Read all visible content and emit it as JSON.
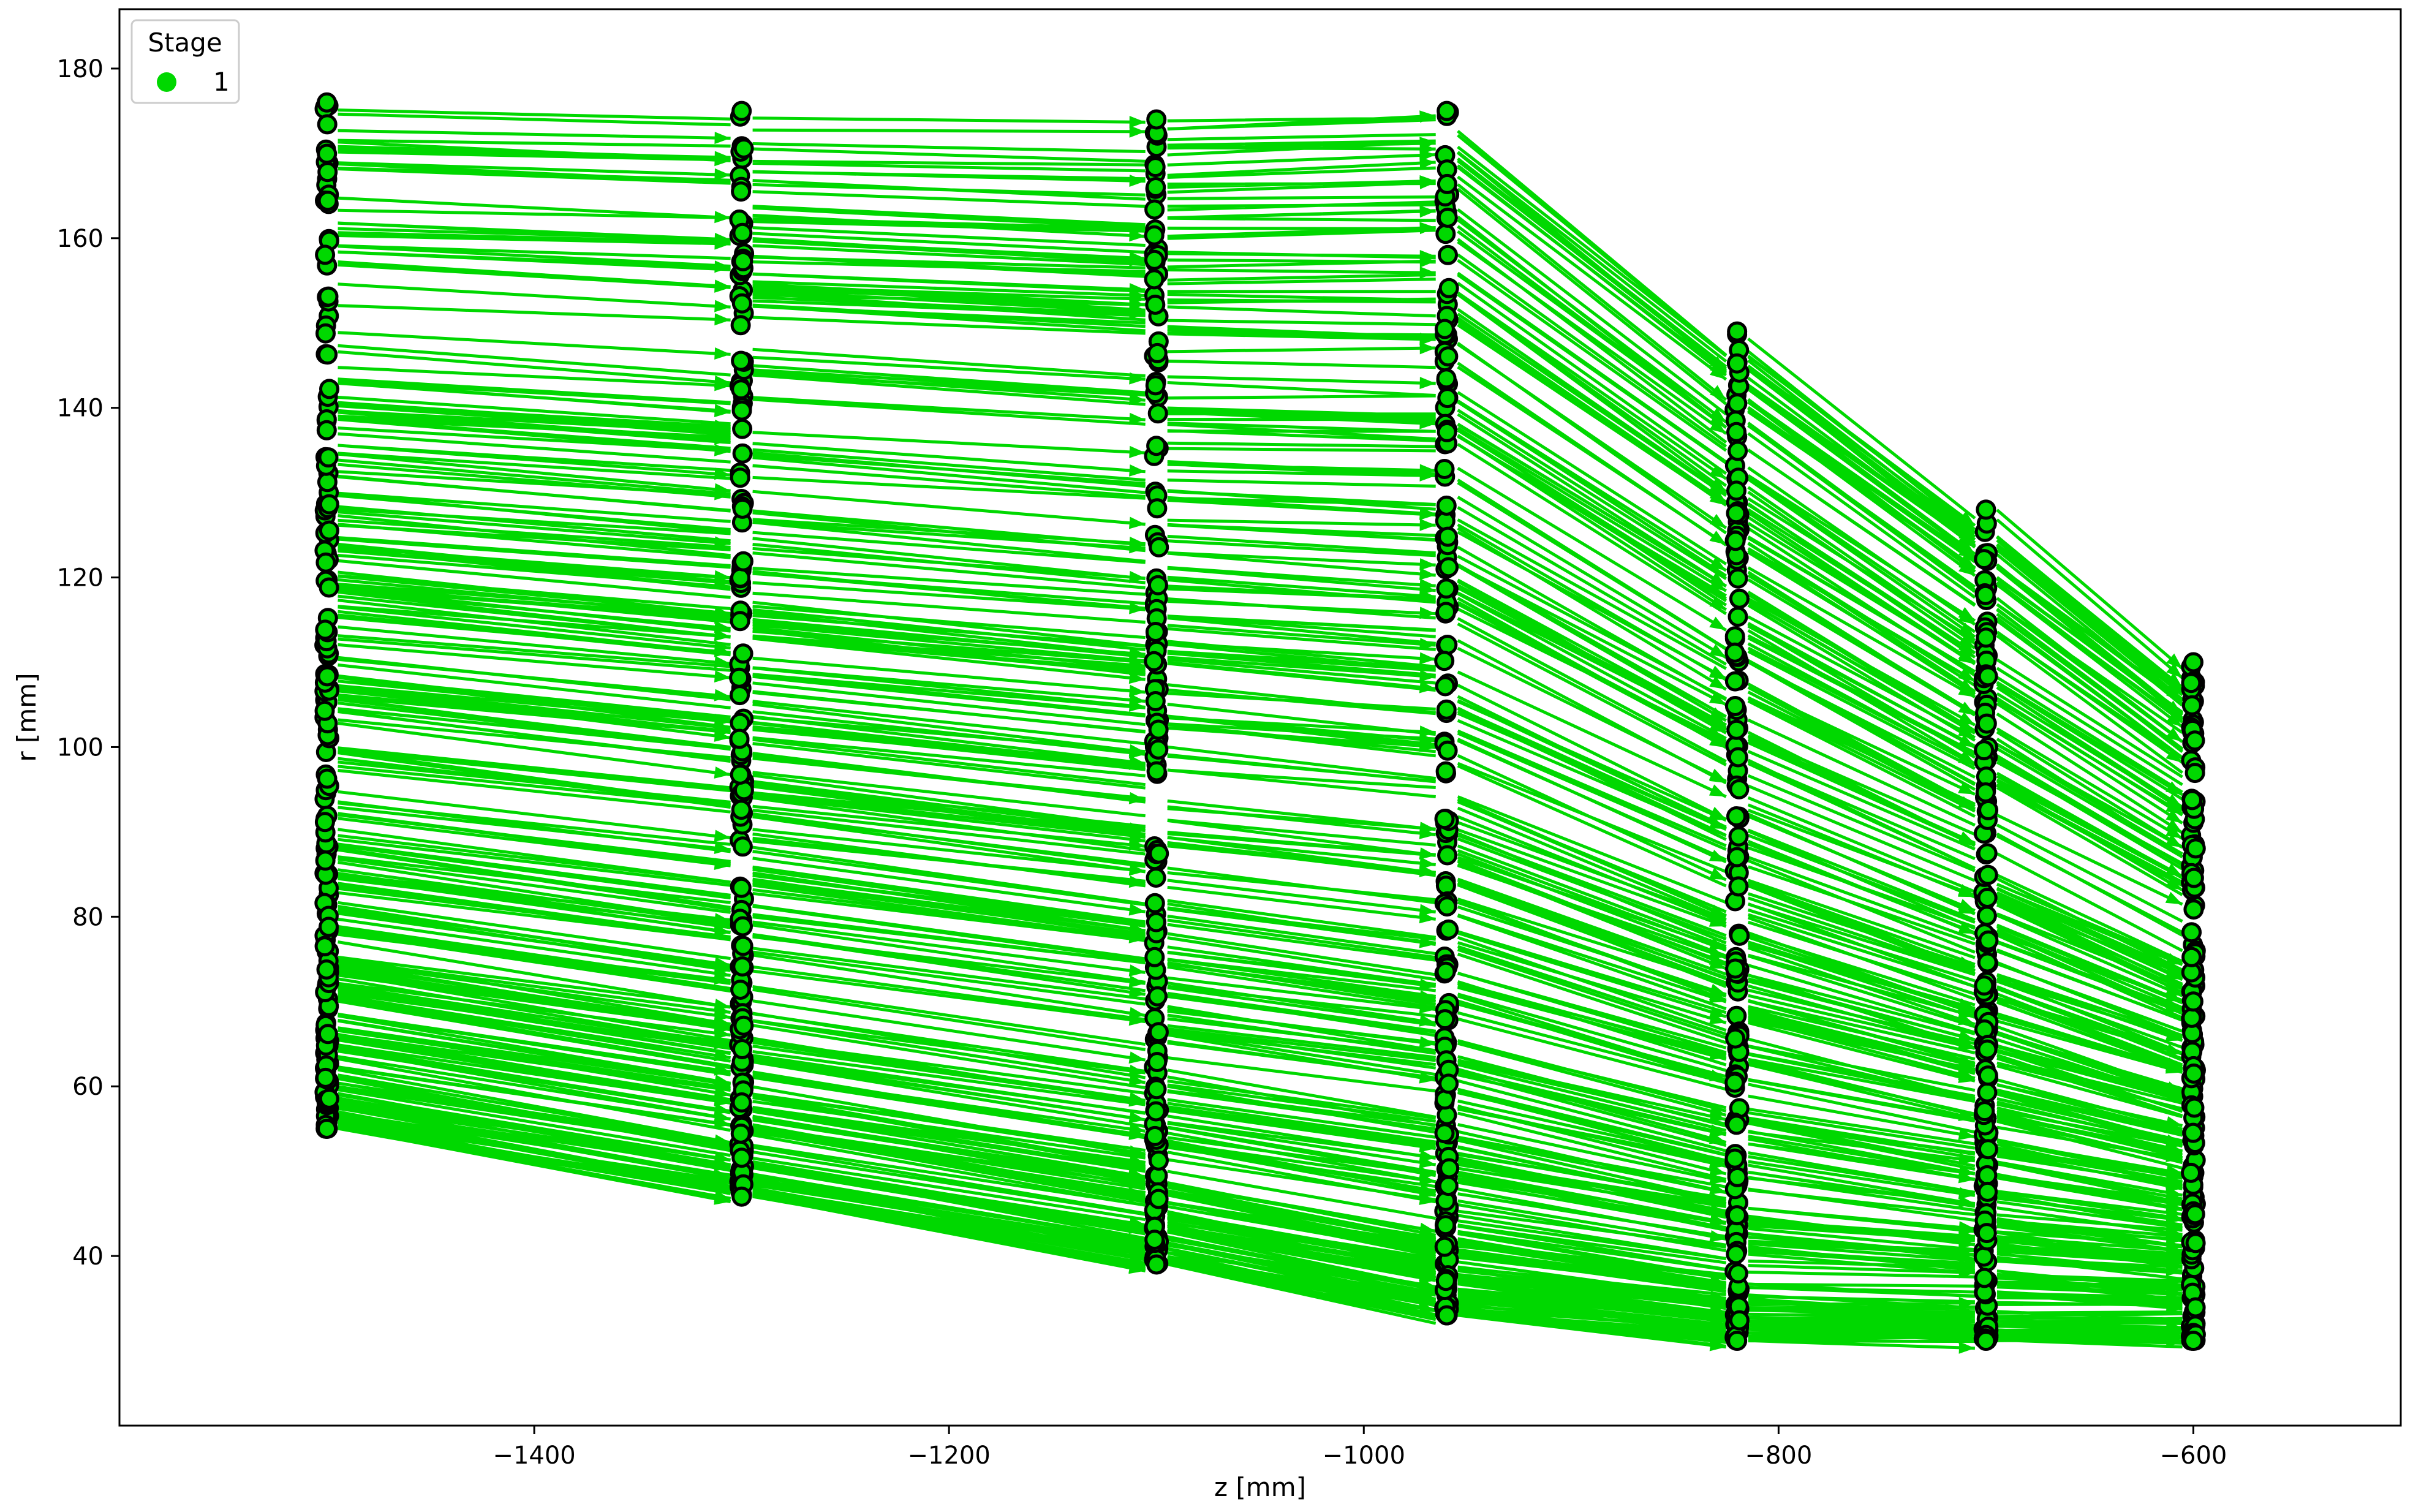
{
  "chart_data": {
    "type": "scatter",
    "title": "",
    "xlabel": "z [mm]",
    "ylabel": "r [mm]",
    "xlim": [
      -1600,
      -500
    ],
    "ylim": [
      20,
      187
    ],
    "x_ticks": [
      -1400,
      -1200,
      -1000,
      -800,
      -600
    ],
    "y_ticks": [
      40,
      60,
      80,
      100,
      120,
      140,
      160,
      180
    ],
    "grid": false,
    "legend": {
      "title": "Stage",
      "placement": "top-left",
      "entries": [
        {
          "label": "1",
          "color": "#00d800"
        }
      ]
    },
    "series": [
      {
        "name": "1",
        "marker": "circle",
        "layers": [
          {
            "z": -1500,
            "r_min": 55,
            "r_max": 176
          },
          {
            "z": -1300,
            "r_min": 47,
            "r_max": 175
          },
          {
            "z": -1100,
            "r_min": 39,
            "r_max": 174
          },
          {
            "z": -960,
            "r_min": 33,
            "r_max": 175
          },
          {
            "z": -820,
            "r_min": 30,
            "r_max": 149
          },
          {
            "z": -700,
            "r_min": 30,
            "r_max": 128
          },
          {
            "z": -600,
            "r_min": 30,
            "r_max": 110
          }
        ],
        "edges": "directed arrows from each layer to the next layer (toward larger z)"
      }
    ]
  },
  "colors": {
    "edge": "#00d800",
    "node_edge": "#000000",
    "node_fill": "#00d800",
    "axis": "#000000",
    "background": "#ffffff"
  }
}
